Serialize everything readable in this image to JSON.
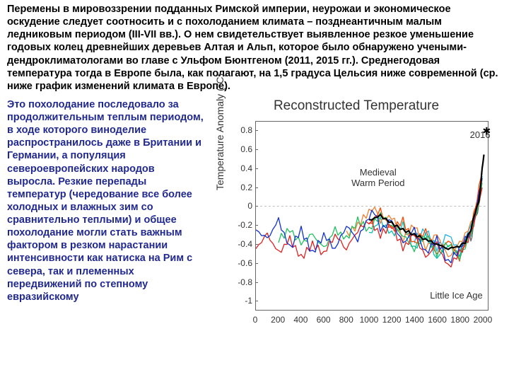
{
  "topParagraph": "Перемены в мировоззрении подданных Римской империи, неурожаи и экономическое оскудение следует соотносить и с похолоданием климата – позднеантичным малым ледниковым периодом (III-VII вв.). О нем свидетельствует выявленное резкое уменьшение годовых колец древнейших деревьев Алтая и Альп, которое было обнаружено учеными-дендроклиматологами во главе с Ульфом Бюнтгеном (2011, 2015 гг.). Среднегодовая температура тогда в Европе была, как полагают, на 1,5 градуса Цельсия ниже современной (ср. ниже график изменений климата в Европе).",
  "leftParagraph": "Это похолодание последовало за продолжительным теплым периодом, в ходе которого виноделие распространилось даже в Британии и Германии, а популяция североевропейских народов выросла. Резкие перепады температур (чередование все более холодных и влажных зим со сравнительно теплыми) и общее похолодание могли стать важным фактором в резком нарастании интенсивности как натиска на Рим с севера, так и племенных передвижений по степному евразийскому",
  "chart": {
    "title": "Reconstructed Temperature",
    "ylabel": "Temperature Anomaly (°C)",
    "ylim": [
      -1.1,
      0.9
    ],
    "yticks": [
      0.8,
      0.6,
      0.4,
      0.2,
      0,
      -0.2,
      -0.4,
      -0.6,
      -0.8,
      -1
    ],
    "xlim": [
      0,
      2050
    ],
    "xticks": [
      0,
      200,
      400,
      600,
      800,
      1000,
      1200,
      1400,
      1600,
      1800,
      2000
    ],
    "annotations": {
      "medieval": "Medieval\nWarm Period",
      "lia": "Little Ice Age",
      "year2016": "2016"
    },
    "colors": {
      "red": "#e02020",
      "orangered": "#ff4500",
      "orange": "#f08030",
      "green": "#20c060",
      "teal": "#00c0b0",
      "cyan": "#20b0e0",
      "blue": "#1030d0",
      "black": "#000000",
      "instrumental": "#606060"
    },
    "series": {
      "blue": [
        [
          0,
          -0.25
        ],
        [
          100,
          -0.35
        ],
        [
          200,
          -0.15
        ],
        [
          300,
          -0.45
        ],
        [
          400,
          -0.25
        ],
        [
          500,
          -0.5
        ],
        [
          600,
          -0.3
        ],
        [
          700,
          -0.45
        ],
        [
          800,
          -0.2
        ],
        [
          900,
          -0.35
        ],
        [
          1000,
          -0.1
        ],
        [
          1050,
          -0.05
        ],
        [
          1100,
          -0.25
        ],
        [
          1200,
          -0.15
        ],
        [
          1300,
          -0.4
        ],
        [
          1400,
          -0.25
        ],
        [
          1500,
          -0.5
        ],
        [
          1600,
          -0.35
        ],
        [
          1700,
          -0.6
        ],
        [
          1800,
          -0.45
        ],
        [
          1900,
          -0.25
        ],
        [
          1950,
          0.0
        ],
        [
          2000,
          0.3
        ]
      ],
      "green": [
        [
          200,
          -0.35
        ],
        [
          300,
          -0.25
        ],
        [
          400,
          -0.4
        ],
        [
          500,
          -0.3
        ],
        [
          600,
          -0.45
        ],
        [
          700,
          -0.25
        ],
        [
          800,
          -0.35
        ],
        [
          900,
          -0.15
        ],
        [
          1000,
          -0.25
        ],
        [
          1100,
          -0.08
        ],
        [
          1200,
          -0.2
        ],
        [
          1300,
          -0.3
        ],
        [
          1400,
          -0.45
        ],
        [
          1500,
          -0.3
        ],
        [
          1600,
          -0.5
        ],
        [
          1700,
          -0.4
        ],
        [
          1800,
          -0.55
        ],
        [
          1900,
          -0.3
        ],
        [
          1950,
          -0.1
        ],
        [
          2000,
          0.25
        ]
      ],
      "red": [
        [
          0,
          -0.45
        ],
        [
          100,
          -0.3
        ],
        [
          200,
          -0.5
        ],
        [
          300,
          -0.35
        ],
        [
          400,
          -0.55
        ],
        [
          500,
          -0.4
        ],
        [
          600,
          -0.5
        ],
        [
          700,
          -0.3
        ],
        [
          800,
          -0.45
        ],
        [
          900,
          -0.25
        ],
        [
          1000,
          -0.15
        ],
        [
          1100,
          -0.3
        ],
        [
          1200,
          -0.2
        ],
        [
          1300,
          -0.45
        ],
        [
          1400,
          -0.3
        ],
        [
          1500,
          -0.55
        ],
        [
          1600,
          -0.4
        ],
        [
          1700,
          -0.65
        ],
        [
          1800,
          -0.5
        ],
        [
          1900,
          -0.3
        ],
        [
          1950,
          -0.05
        ],
        [
          2000,
          0.2
        ]
      ],
      "orange": [
        [
          800,
          -0.3
        ],
        [
          900,
          -0.2
        ],
        [
          1000,
          -0.05
        ],
        [
          1050,
          0.0
        ],
        [
          1100,
          -0.15
        ],
        [
          1200,
          -0.1
        ],
        [
          1300,
          -0.35
        ],
        [
          1400,
          -0.2
        ],
        [
          1500,
          -0.45
        ],
        [
          1600,
          -0.3
        ],
        [
          1700,
          -0.55
        ],
        [
          1800,
          -0.4
        ],
        [
          1900,
          -0.2
        ],
        [
          1950,
          0.0
        ],
        [
          2000,
          0.3
        ]
      ],
      "orangered": [
        [
          1000,
          -0.2
        ],
        [
          1100,
          -0.05
        ],
        [
          1200,
          -0.25
        ],
        [
          1300,
          -0.15
        ],
        [
          1400,
          -0.4
        ],
        [
          1500,
          -0.25
        ],
        [
          1600,
          -0.5
        ],
        [
          1700,
          -0.35
        ],
        [
          1800,
          -0.55
        ],
        [
          1900,
          -0.25
        ],
        [
          1950,
          0.05
        ],
        [
          2000,
          0.35
        ]
      ],
      "teal": [
        [
          1000,
          -0.3
        ],
        [
          1100,
          -0.15
        ],
        [
          1200,
          -0.3
        ],
        [
          1300,
          -0.2
        ],
        [
          1400,
          -0.45
        ],
        [
          1500,
          -0.3
        ],
        [
          1600,
          -0.55
        ],
        [
          1700,
          -0.4
        ],
        [
          1800,
          -0.5
        ],
        [
          1900,
          -0.28
        ],
        [
          1950,
          -0.05
        ],
        [
          2000,
          0.28
        ]
      ],
      "cyan": [
        [
          1400,
          -0.35
        ],
        [
          1500,
          -0.25
        ],
        [
          1600,
          -0.45
        ],
        [
          1700,
          -0.3
        ],
        [
          1800,
          -0.48
        ],
        [
          1900,
          -0.22
        ],
        [
          1950,
          0.0
        ],
        [
          2000,
          0.32
        ]
      ],
      "instrumental": [
        [
          1850,
          -0.4
        ],
        [
          1880,
          -0.3
        ],
        [
          1900,
          -0.35
        ],
        [
          1920,
          -0.25
        ],
        [
          1940,
          -0.05
        ],
        [
          1960,
          -0.1
        ],
        [
          1980,
          0.1
        ],
        [
          2000,
          0.4
        ]
      ],
      "black": [
        [
          1000,
          -0.15
        ],
        [
          1100,
          -0.1
        ],
        [
          1200,
          -0.18
        ],
        [
          1300,
          -0.25
        ],
        [
          1400,
          -0.3
        ],
        [
          1500,
          -0.35
        ],
        [
          1600,
          -0.4
        ],
        [
          1700,
          -0.45
        ],
        [
          1800,
          -0.42
        ],
        [
          1850,
          -0.38
        ],
        [
          1900,
          -0.25
        ],
        [
          1940,
          -0.05
        ],
        [
          1970,
          0.05
        ],
        [
          1990,
          0.25
        ],
        [
          2000,
          0.4
        ],
        [
          2016,
          0.55
        ]
      ]
    }
  }
}
